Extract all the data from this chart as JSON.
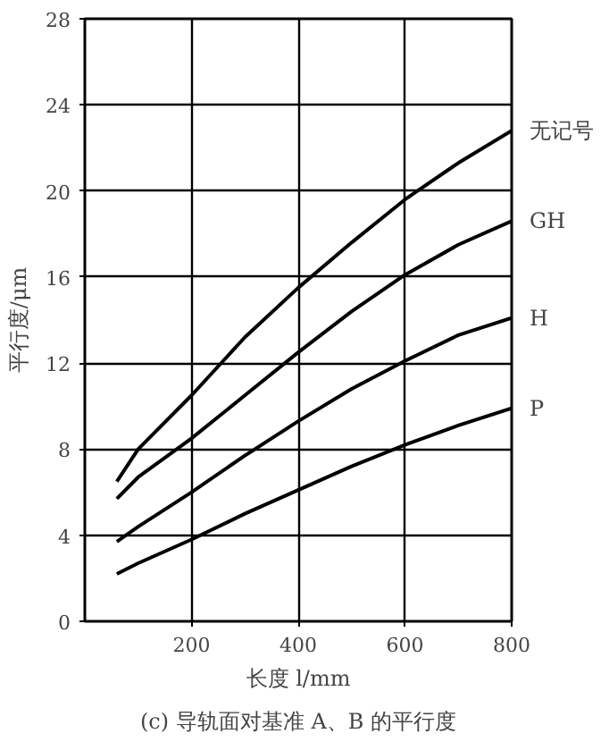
{
  "chart_data": {
    "type": "line",
    "title": "(c) 导轨面对基准 A、B 的平行度",
    "xlabel": "长度 l/mm",
    "ylabel": "平行度/μm",
    "xlim": [
      0,
      800
    ],
    "ylim": [
      0,
      28
    ],
    "xticks": [
      200,
      400,
      600,
      800
    ],
    "yticks": [
      0,
      4,
      8,
      12,
      16,
      20,
      24,
      28
    ],
    "grid": true,
    "line_style": "solid",
    "x": [
      60,
      100,
      200,
      300,
      400,
      500,
      600,
      700,
      800
    ],
    "series": [
      {
        "name": "无记号",
        "color": "#000000",
        "values": [
          6.5,
          8,
          10.5,
          13.2,
          15.5,
          17.6,
          19.6,
          21.3,
          22.8
        ]
      },
      {
        "name": "GH",
        "color": "#000000",
        "values": [
          5.7,
          6.7,
          8.5,
          10.5,
          12.5,
          14.4,
          16.1,
          17.5,
          18.6
        ]
      },
      {
        "name": "H",
        "color": "#000000",
        "values": [
          3.7,
          4.4,
          6,
          7.7,
          9.3,
          10.8,
          12.1,
          13.3,
          14.1
        ]
      },
      {
        "name": "P",
        "color": "#000000",
        "values": [
          2.2,
          2.7,
          3.8,
          5,
          6.1,
          7.2,
          8.2,
          9.1,
          9.9
        ]
      }
    ]
  }
}
